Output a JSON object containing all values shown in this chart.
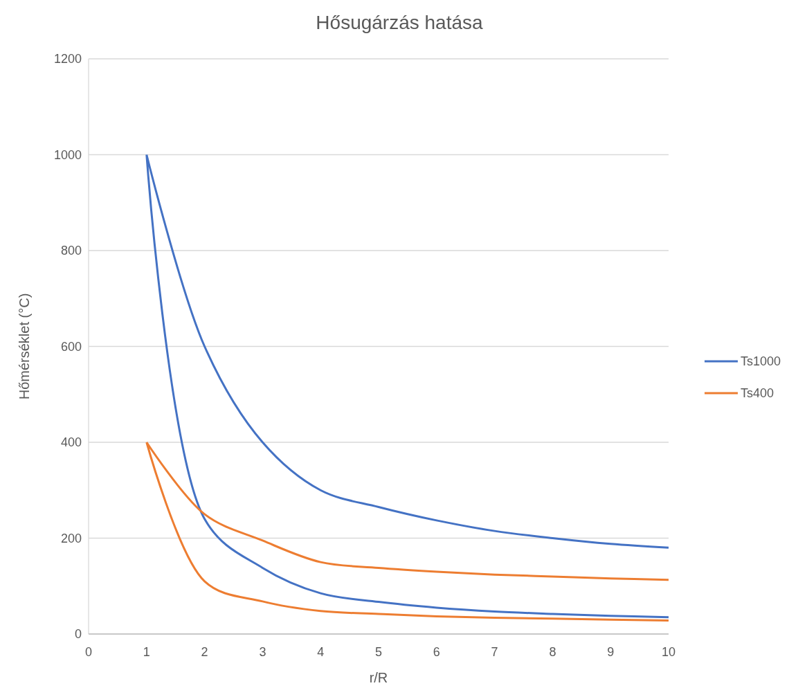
{
  "chart_data": {
    "type": "line",
    "title": "Hősugárzás hatása",
    "xlabel": "r/R",
    "ylabel": "Hőmérséklet (°C)",
    "xlim": [
      0,
      10
    ],
    "xticks": [
      0,
      1,
      2,
      3,
      4,
      5,
      6,
      7,
      8,
      9,
      10
    ],
    "ylim": [
      0,
      1200
    ],
    "yticks": [
      0,
      200,
      400,
      600,
      800,
      1000,
      1200
    ],
    "grid": "y",
    "legend": "right",
    "line_style": "solid",
    "series": [
      {
        "name": "Ts1000",
        "color": "#4472c4",
        "x": [
          1,
          2,
          3,
          4,
          5,
          6,
          7,
          8,
          9,
          10,
          null,
          1,
          2,
          3,
          4,
          5,
          6,
          7,
          8,
          9,
          10
        ],
        "values": [
          1000,
          600,
          400,
          300,
          265,
          237,
          215,
          200,
          188,
          180,
          null,
          1000,
          240,
          138,
          85,
          67,
          55,
          47,
          42,
          38,
          35
        ]
      },
      {
        "name": "Ts400",
        "color": "#ed7d31",
        "x": [
          1,
          2,
          3,
          4,
          5,
          6,
          7,
          8,
          9,
          10,
          null,
          1,
          2,
          3,
          4,
          5,
          6,
          7,
          8,
          9,
          10
        ],
        "values": [
          400,
          250,
          195,
          150,
          138,
          130,
          124,
          120,
          116,
          113,
          null,
          400,
          110,
          68,
          48,
          42,
          37,
          34,
          32,
          30,
          28
        ]
      }
    ]
  }
}
